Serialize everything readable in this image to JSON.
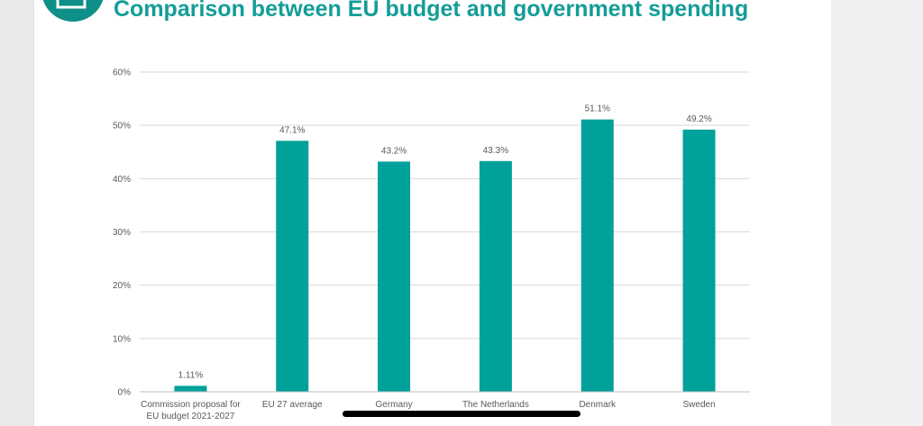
{
  "title": "Comparison between EU budget and government spending",
  "colors": {
    "bar": "#00a19a",
    "title": "#139d98",
    "grid": "#d9d9d9",
    "text": "#595959"
  },
  "icons": {
    "logo": "presentation-icon"
  },
  "chart_data": {
    "type": "bar",
    "title": "",
    "xlabel": "",
    "ylabel": "",
    "categories": [
      [
        "Commission proposal for",
        "EU budget 2021-2027"
      ],
      [
        "EU 27 average"
      ],
      [
        "Germany"
      ],
      [
        "The Netherlands"
      ],
      [
        "Denmark"
      ],
      [
        "Sweden"
      ]
    ],
    "values": [
      1.11,
      47.1,
      43.2,
      43.3,
      51.1,
      49.2
    ],
    "data_labels": [
      "1.11%",
      "47.1%",
      "43.2%",
      "43.3%",
      "51.1%",
      "49.2%"
    ],
    "y_ticks": [
      "0%",
      "10%",
      "20%",
      "30%",
      "40%",
      "50%",
      "60%"
    ],
    "y_tick_values": [
      0,
      10,
      20,
      30,
      40,
      50,
      60
    ],
    "ylim": [
      0,
      60
    ],
    "grid": true,
    "legend": "none"
  }
}
